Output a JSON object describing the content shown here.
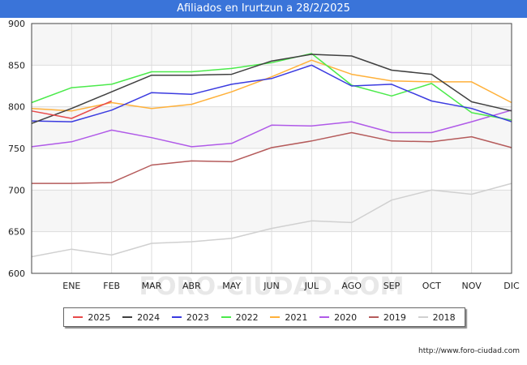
{
  "page": {
    "title": "Afiliados en Irurtzun a 28/2/2025",
    "footer_url": "http://www.foro-ciudad.com",
    "watermark": "FORO-CIUDAD.COM"
  },
  "colors": {
    "title_bar": "#3a74d9",
    "band_light": "#f6f6f6",
    "grid": "#dddddd"
  },
  "chart_data": {
    "type": "line",
    "categories": [
      "",
      "ENE",
      "FEB",
      "MAR",
      "ABR",
      "MAY",
      "JUN",
      "JUL",
      "AGO",
      "SEP",
      "OCT",
      "NOV",
      "DIC"
    ],
    "ylim": [
      600,
      900
    ],
    "yticks": [
      600,
      650,
      700,
      750,
      800,
      850,
      900
    ],
    "grid": true,
    "legend_position": "bottom",
    "series": [
      {
        "name": "2018",
        "color": "#d0d0d0",
        "values": [
          620,
          629,
          622,
          636,
          638,
          642,
          654,
          663,
          661,
          688,
          700,
          695,
          708
        ]
      },
      {
        "name": "2019",
        "color": "#b55b5b",
        "values": [
          708,
          708,
          709,
          730,
          735,
          734,
          751,
          759,
          769,
          759,
          758,
          764,
          751
        ]
      },
      {
        "name": "2020",
        "color": "#b05ae8",
        "values": [
          752,
          758,
          772,
          763,
          752,
          756,
          778,
          777,
          782,
          769,
          769,
          782,
          796
        ]
      },
      {
        "name": "2021",
        "color": "#ffb13a",
        "values": [
          798,
          795,
          805,
          798,
          803,
          818,
          836,
          856,
          839,
          831,
          830,
          830,
          805
        ]
      },
      {
        "name": "2022",
        "color": "#4bea4b",
        "values": [
          805,
          823,
          827,
          842,
          842,
          846,
          853,
          864,
          826,
          813,
          828,
          793,
          784
        ]
      },
      {
        "name": "2023",
        "color": "#3b3be0",
        "values": [
          783,
          782,
          796,
          817,
          815,
          827,
          834,
          850,
          825,
          827,
          807,
          798,
          782
        ]
      },
      {
        "name": "2024",
        "color": "#404040",
        "values": [
          780,
          798,
          818,
          838,
          838,
          839,
          855,
          863,
          861,
          844,
          839,
          806,
          795
        ]
      },
      {
        "name": "2025",
        "color": "#e84a4a",
        "values": [
          795,
          786,
          807,
          null,
          null,
          null,
          null,
          null,
          null,
          null,
          null,
          null,
          null
        ]
      }
    ],
    "legend_order": [
      "2025",
      "2024",
      "2023",
      "2022",
      "2021",
      "2020",
      "2019",
      "2018"
    ]
  }
}
